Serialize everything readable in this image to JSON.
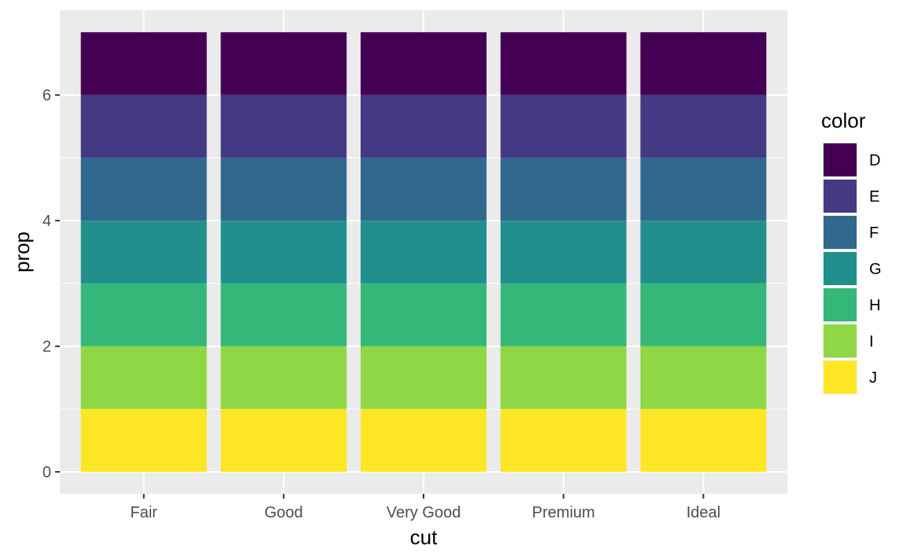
{
  "chart_data": {
    "type": "bar",
    "stacked": true,
    "categories": [
      "Fair",
      "Good",
      "Very Good",
      "Premium",
      "Ideal"
    ],
    "series": [
      {
        "name": "D",
        "values": [
          1,
          1,
          1,
          1,
          1
        ],
        "color": "#440154"
      },
      {
        "name": "E",
        "values": [
          1,
          1,
          1,
          1,
          1
        ],
        "color": "#443A83"
      },
      {
        "name": "F",
        "values": [
          1,
          1,
          1,
          1,
          1
        ],
        "color": "#31688E"
      },
      {
        "name": "G",
        "values": [
          1,
          1,
          1,
          1,
          1
        ],
        "color": "#21908C"
      },
      {
        "name": "H",
        "values": [
          1,
          1,
          1,
          1,
          1
        ],
        "color": "#35B779"
      },
      {
        "name": "I",
        "values": [
          1,
          1,
          1,
          1,
          1
        ],
        "color": "#8FD744"
      },
      {
        "name": "J",
        "values": [
          1,
          1,
          1,
          1,
          1
        ],
        "color": "#FDE725"
      }
    ],
    "stack_order_bottom_to_top": [
      "J",
      "I",
      "H",
      "G",
      "F",
      "E",
      "D"
    ],
    "xlabel": "cut",
    "ylabel": "prop",
    "ylim": [
      -0.35,
      7.35
    ],
    "yticks": [
      0,
      2,
      4,
      6
    ],
    "ytick_labels": [
      "0",
      "2",
      "4",
      "6"
    ],
    "grid": true,
    "legend_title": "color",
    "legend_position": "right",
    "panel_background": "#EBEBEB",
    "grid_color": "#FFFFFF"
  }
}
